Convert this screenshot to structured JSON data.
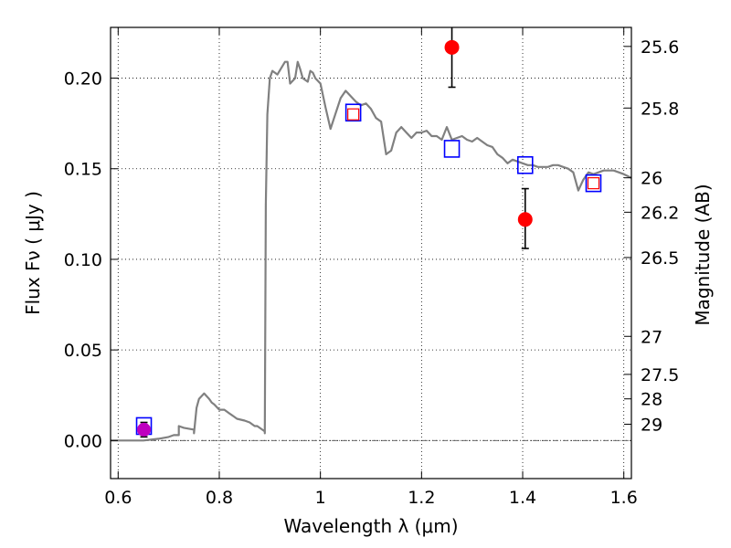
{
  "chart_data": {
    "type": "scatter",
    "xlabel": "Wavelength  λ (μm)",
    "ylabel": "Flux  Fν  ( μJy )",
    "ylabel_right": "Magnitude (AB)",
    "xlim": [
      0.585,
      1.615
    ],
    "ylim": [
      -0.021,
      0.228
    ],
    "grid": true,
    "x_ticks": [
      0.6,
      0.8,
      1.0,
      1.2,
      1.4,
      1.6
    ],
    "x_tick_labels": [
      "0.6",
      "0.8",
      "1",
      "1.2",
      "1.4",
      "1.6"
    ],
    "y_ticks": [
      0.0,
      0.05,
      0.1,
      0.15,
      0.2
    ],
    "y_tick_labels": [
      "0.00",
      "0.05",
      "0.10",
      "0.15",
      "0.20"
    ],
    "right_ticks": [
      {
        "flux": 0.2175,
        "label": "25.6"
      },
      {
        "flux": 0.1835,
        "label": "25.8"
      },
      {
        "flux": 0.145,
        "label": "26"
      },
      {
        "flux": 0.126,
        "label": "26.2"
      },
      {
        "flux": 0.101,
        "label": "26.5"
      },
      {
        "flux": 0.0575,
        "label": "27"
      },
      {
        "flux": 0.0365,
        "label": "27.5"
      },
      {
        "flux": 0.023,
        "label": "28"
      },
      {
        "flux": 0.009,
        "label": "29"
      }
    ],
    "series": [
      {
        "kind": "model_spectrum",
        "color": "#808080",
        "x": [
          0.585,
          0.62,
          0.65,
          0.68,
          0.7,
          0.71,
          0.72,
          0.72,
          0.73,
          0.75,
          0.75,
          0.755,
          0.76,
          0.77,
          0.78,
          0.785,
          0.79,
          0.8,
          0.81,
          0.82,
          0.83,
          0.835,
          0.85,
          0.86,
          0.87,
          0.875,
          0.885,
          0.89,
          0.89,
          0.892,
          0.895,
          0.9,
          0.905,
          0.91,
          0.915,
          0.93,
          0.935,
          0.94,
          0.95,
          0.955,
          0.96,
          0.965,
          0.975,
          0.98,
          0.985,
          0.99,
          1.0,
          1.01,
          1.02,
          1.04,
          1.05,
          1.06,
          1.07,
          1.08,
          1.09,
          1.1,
          1.11,
          1.12,
          1.13,
          1.14,
          1.15,
          1.16,
          1.17,
          1.18,
          1.19,
          1.2,
          1.21,
          1.22,
          1.23,
          1.24,
          1.25,
          1.26,
          1.27,
          1.28,
          1.29,
          1.3,
          1.31,
          1.32,
          1.33,
          1.34,
          1.35,
          1.36,
          1.37,
          1.38,
          1.39,
          1.4,
          1.41,
          1.42,
          1.43,
          1.44,
          1.45,
          1.46,
          1.47,
          1.48,
          1.49,
          1.5,
          1.51,
          1.52,
          1.53,
          1.54,
          1.55,
          1.56,
          1.57,
          1.58,
          1.59,
          1.6,
          1.615
        ],
        "y": [
          0.0,
          0.0,
          0.0,
          0.001,
          0.002,
          0.003,
          0.003,
          0.008,
          0.007,
          0.006,
          0.004,
          0.018,
          0.023,
          0.026,
          0.023,
          0.021,
          0.02,
          0.017,
          0.017,
          0.015,
          0.013,
          0.012,
          0.011,
          0.01,
          0.008,
          0.008,
          0.006,
          0.005,
          0.004,
          0.13,
          0.18,
          0.2,
          0.204,
          0.203,
          0.202,
          0.209,
          0.209,
          0.197,
          0.2,
          0.209,
          0.205,
          0.2,
          0.198,
          0.204,
          0.203,
          0.2,
          0.197,
          0.184,
          0.172,
          0.189,
          0.193,
          0.19,
          0.187,
          0.185,
          0.186,
          0.183,
          0.178,
          0.176,
          0.158,
          0.16,
          0.17,
          0.173,
          0.17,
          0.167,
          0.17,
          0.17,
          0.171,
          0.168,
          0.168,
          0.166,
          0.173,
          0.166,
          0.167,
          0.168,
          0.166,
          0.165,
          0.167,
          0.165,
          0.163,
          0.162,
          0.158,
          0.156,
          0.153,
          0.155,
          0.154,
          0.153,
          0.152,
          0.152,
          0.151,
          0.151,
          0.151,
          0.152,
          0.152,
          0.151,
          0.15,
          0.148,
          0.138,
          0.144,
          0.148,
          0.147,
          0.148,
          0.149,
          0.149,
          0.149,
          0.148,
          0.147,
          0.145
        ]
      },
      {
        "kind": "model_photometry_blue",
        "color": "#0000ff",
        "points": [
          {
            "x": 0.651,
            "y": 0.008
          },
          {
            "x": 1.065,
            "y": 0.181
          },
          {
            "x": 1.26,
            "y": 0.161
          },
          {
            "x": 1.405,
            "y": 0.152
          },
          {
            "x": 1.54,
            "y": 0.142
          }
        ]
      },
      {
        "kind": "model_photometry_red",
        "color": "#ff0000",
        "points": [
          {
            "x": 1.065,
            "y": 0.18
          },
          {
            "x": 1.54,
            "y": 0.142
          }
        ]
      },
      {
        "kind": "observed_photometry",
        "color": "#ff0000",
        "points": [
          {
            "x": 1.26,
            "y": 0.217,
            "err_low": 0.195,
            "err_high": 0.228
          },
          {
            "x": 1.405,
            "y": 0.122,
            "err_low": 0.106,
            "err_high": 0.139
          }
        ]
      },
      {
        "kind": "observed_photometry_limit",
        "color": "#bf00bf",
        "points": [
          {
            "x": 0.651,
            "y": 0.006,
            "err_low": 0.002,
            "err_high": 0.01
          }
        ]
      }
    ]
  }
}
